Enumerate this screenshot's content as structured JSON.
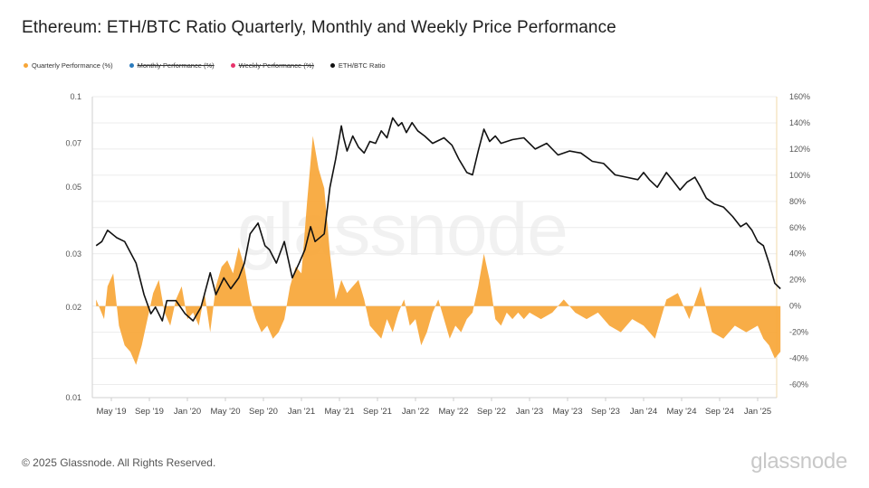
{
  "title": "Ethereum: ETH/BTC Ratio Quarterly, Monthly and Weekly Price Performance",
  "legend": [
    {
      "label": "Quarterly Performance (%)",
      "color": "#f7a637",
      "enabled": true
    },
    {
      "label": "Monthly Performance (%)",
      "color": "#2b7bbd",
      "enabled": false
    },
    {
      "label": "Weekly Performance (%)",
      "color": "#e8336b",
      "enabled": false
    },
    {
      "label": "ETH/BTC Ratio",
      "color": "#111111",
      "enabled": true
    }
  ],
  "footer": "© 2025 Glassnode. All Rights Reserved.",
  "brand": "glassnode",
  "watermark": "glassnode",
  "chart_data": {
    "type": "area",
    "x_tick_labels": [
      "May '19",
      "Sep '19",
      "Jan '20",
      "May '20",
      "Sep '20",
      "Jan '21",
      "May '21",
      "Sep '21",
      "Jan '22",
      "May '22",
      "Sep '22",
      "Jan '23",
      "May '23",
      "Sep '23",
      "Jan '24",
      "May '24",
      "Sep '24",
      "Jan '25"
    ],
    "x_range": [
      "2019-03",
      "2025-03"
    ],
    "left_axis": {
      "label": "",
      "scale": "log",
      "ticks": [
        0.01,
        0.02,
        0.03,
        0.05,
        0.07,
        0.1
      ],
      "tick_labels": [
        "0.01",
        "0.02",
        "0.03",
        "0.05",
        "0.07",
        "0.1"
      ],
      "range": [
        0.01,
        0.1
      ]
    },
    "right_axis": {
      "label": "",
      "scale": "linear",
      "ticks": [
        -60,
        -40,
        -20,
        0,
        20,
        40,
        60,
        80,
        100,
        120,
        140,
        160
      ],
      "tick_labels": [
        "-60%",
        "-40%",
        "-20%",
        "0%",
        "20%",
        "40%",
        "60%",
        "80%",
        "100%",
        "120%",
        "140%",
        "160%"
      ],
      "range": [
        -70,
        160
      ]
    },
    "grid": true,
    "legend_position": "top-left",
    "series": [
      {
        "name": "ETH/BTC Ratio",
        "axis": "left",
        "style": "line",
        "color": "#111111",
        "x": [
          2019.2,
          2019.25,
          2019.3,
          2019.38,
          2019.45,
          2019.55,
          2019.62,
          2019.68,
          2019.72,
          2019.78,
          2019.82,
          2019.9,
          2019.98,
          2020.05,
          2020.12,
          2020.2,
          2020.25,
          2020.32,
          2020.38,
          2020.45,
          2020.5,
          2020.55,
          2020.62,
          2020.68,
          2020.72,
          2020.78,
          2020.85,
          2020.92,
          2020.98,
          2021.03,
          2021.08,
          2021.12,
          2021.2,
          2021.25,
          2021.3,
          2021.35,
          2021.37,
          2021.4,
          2021.45,
          2021.5,
          2021.55,
          2021.6,
          2021.65,
          2021.7,
          2021.75,
          2021.8,
          2021.85,
          2021.88,
          2021.92,
          2021.97,
          2022.02,
          2022.08,
          2022.15,
          2022.25,
          2022.32,
          2022.38,
          2022.45,
          2022.5,
          2022.55,
          2022.6,
          2022.65,
          2022.7,
          2022.75,
          2022.85,
          2022.95,
          2023.05,
          2023.15,
          2023.25,
          2023.35,
          2023.45,
          2023.55,
          2023.65,
          2023.75,
          2023.85,
          2023.95,
          2024.0,
          2024.05,
          2024.12,
          2024.2,
          2024.25,
          2024.32,
          2024.38,
          2024.45,
          2024.5,
          2024.55,
          2024.62,
          2024.7,
          2024.78,
          2024.85,
          2024.9,
          2024.95,
          2025.0,
          2025.05,
          2025.1,
          2025.15,
          2025.2
        ],
        "values": [
          0.032,
          0.033,
          0.036,
          0.034,
          0.033,
          0.028,
          0.022,
          0.019,
          0.02,
          0.018,
          0.021,
          0.021,
          0.019,
          0.018,
          0.02,
          0.026,
          0.022,
          0.025,
          0.023,
          0.025,
          0.028,
          0.035,
          0.038,
          0.032,
          0.031,
          0.028,
          0.033,
          0.025,
          0.028,
          0.031,
          0.037,
          0.033,
          0.035,
          0.05,
          0.062,
          0.08,
          0.073,
          0.066,
          0.074,
          0.068,
          0.065,
          0.071,
          0.07,
          0.077,
          0.073,
          0.085,
          0.08,
          0.082,
          0.076,
          0.082,
          0.077,
          0.074,
          0.07,
          0.073,
          0.069,
          0.062,
          0.056,
          0.055,
          0.066,
          0.078,
          0.071,
          0.074,
          0.07,
          0.072,
          0.073,
          0.067,
          0.07,
          0.064,
          0.066,
          0.065,
          0.061,
          0.06,
          0.055,
          0.054,
          0.053,
          0.056,
          0.053,
          0.05,
          0.056,
          0.053,
          0.049,
          0.052,
          0.054,
          0.05,
          0.046,
          0.044,
          0.043,
          0.04,
          0.037,
          0.038,
          0.036,
          0.033,
          0.032,
          0.028,
          0.024,
          0.023
        ]
      },
      {
        "name": "Quarterly Performance (%)",
        "axis": "right",
        "style": "area",
        "color": "#f7a637",
        "x": [
          2019.2,
          2019.27,
          2019.3,
          2019.35,
          2019.4,
          2019.45,
          2019.5,
          2019.55,
          2019.6,
          2019.65,
          2019.7,
          2019.75,
          2019.8,
          2019.85,
          2019.9,
          2019.95,
          2020.0,
          2020.05,
          2020.1,
          2020.15,
          2020.2,
          2020.25,
          2020.3,
          2020.35,
          2020.4,
          2020.45,
          2020.5,
          2020.55,
          2020.6,
          2020.65,
          2020.7,
          2020.75,
          2020.8,
          2020.85,
          2020.9,
          2020.95,
          2021.0,
          2021.05,
          2021.1,
          2021.15,
          2021.2,
          2021.25,
          2021.3,
          2021.35,
          2021.4,
          2021.45,
          2021.5,
          2021.55,
          2021.6,
          2021.65,
          2021.7,
          2021.75,
          2021.8,
          2021.85,
          2021.9,
          2021.95,
          2022.0,
          2022.05,
          2022.1,
          2022.15,
          2022.2,
          2022.25,
          2022.3,
          2022.35,
          2022.4,
          2022.45,
          2022.5,
          2022.55,
          2022.6,
          2022.65,
          2022.7,
          2022.75,
          2022.8,
          2022.85,
          2022.9,
          2022.95,
          2023.0,
          2023.1,
          2023.2,
          2023.3,
          2023.4,
          2023.5,
          2023.6,
          2023.7,
          2023.8,
          2023.9,
          2024.0,
          2024.1,
          2024.2,
          2024.3,
          2024.4,
          2024.5,
          2024.6,
          2024.7,
          2024.8,
          2024.9,
          2025.0,
          2025.05,
          2025.1,
          2025.15,
          2025.2
        ],
        "values": [
          5,
          -10,
          15,
          25,
          -15,
          -30,
          -35,
          -45,
          -30,
          -10,
          10,
          20,
          -5,
          -15,
          5,
          15,
          -10,
          -5,
          -15,
          10,
          -20,
          15,
          30,
          35,
          25,
          45,
          30,
          5,
          -10,
          -20,
          -15,
          -25,
          -20,
          -10,
          15,
          30,
          25,
          80,
          130,
          105,
          90,
          40,
          5,
          20,
          10,
          15,
          20,
          5,
          -15,
          -20,
          -25,
          -10,
          -20,
          -5,
          5,
          -15,
          -10,
          -30,
          -20,
          -5,
          5,
          -10,
          -25,
          -15,
          -20,
          -10,
          -5,
          15,
          40,
          20,
          -10,
          -15,
          -5,
          -10,
          -5,
          -10,
          -5,
          -10,
          -5,
          5,
          -5,
          -10,
          -5,
          -15,
          -20,
          -10,
          -15,
          -25,
          5,
          10,
          -10,
          15,
          -20,
          -25,
          -15,
          -20,
          -15,
          -25,
          -30,
          -40,
          -35
        ]
      }
    ]
  }
}
